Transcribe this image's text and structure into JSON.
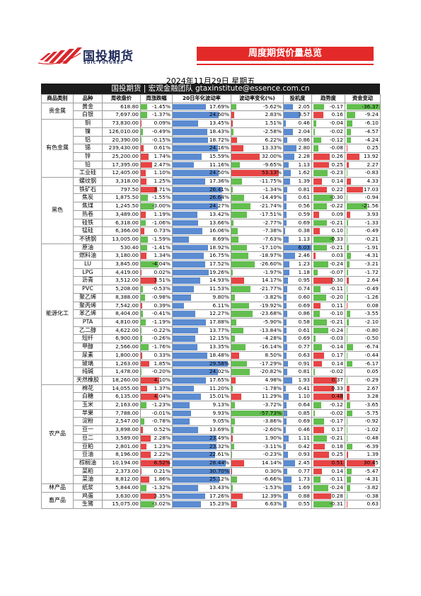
{
  "logo": {
    "name_cn": "国投期货",
    "name_en": "SDIC FUTURES"
  },
  "banner": "周度期货价量总览",
  "date": "2024年11月29日 星期五",
  "team": "国投期货 | 宏观金融团队  gtaxinstitute@essence.com.cn",
  "headers": [
    "商品类别",
    "品种",
    "周收盘价",
    "周涨跌幅",
    "20日年化波动率",
    "波动率变化(%)",
    "投机度",
    "趋势度",
    "资金变动"
  ],
  "groups": [
    {
      "category": "贵金属",
      "rows": [
        [
          "黄金",
          "618.80",
          "-1.45%",
          "17.69%",
          "-5.62%",
          "2.05",
          "-0.17",
          "-36.37"
        ],
        [
          "白银",
          "7,697.00",
          "-1.37%",
          "24.60%",
          "2.83%",
          "3.57",
          "0.16",
          "-9.24"
        ]
      ]
    },
    {
      "category": "有色金属",
      "rows": [
        [
          "铜",
          "73,830.00",
          "0.09%",
          "13.45%",
          "1.51%",
          "0.46",
          "-0.04",
          "-6.10"
        ],
        [
          "镍",
          "126,010.00",
          "-0.49%",
          "18.43%",
          "-2.58%",
          "2.04",
          "-0.02",
          "-4.57"
        ],
        [
          "铝",
          "20,390.00",
          "-0.15%",
          "18.72%",
          "6.22%",
          "0.86",
          "-0.12",
          "-4.24"
        ],
        [
          "锡",
          "239,430.00",
          "0.61%",
          "24.16%",
          "13.33%",
          "2.80",
          "-0.08",
          "0.25"
        ],
        [
          "锌",
          "25,200.00",
          "1.74%",
          "15.59%",
          "32.00%",
          "2.28",
          "0.26",
          "13.92"
        ],
        [
          "铅",
          "17,395.00",
          "2.47%",
          "11.16%",
          "-9.65%",
          "1.13",
          "0.25",
          "2.27"
        ],
        [
          "工业硅",
          "12,405.00",
          "1.10%",
          "24.50%",
          "53.13%",
          "1.62",
          "-0.23",
          "-0.83"
        ]
      ]
    },
    {
      "category": "黑色",
      "rows": [
        [
          "螺纹钢",
          "3,318.00",
          "1.25%",
          "17.36%",
          "-11.75%",
          "1.39",
          "0.14",
          "4.33"
        ],
        [
          "铁矿石",
          "797.50",
          "3.71%",
          "26.41%",
          "-1.34%",
          "0.81",
          "0.22",
          "17.03"
        ],
        [
          "焦炭",
          "1,875.50",
          "-1.55%",
          "26.64%",
          "-14.49%",
          "0.61",
          "-0.30",
          "-0.94"
        ],
        [
          "焦煤",
          "1,245.50",
          "-3.00%",
          "24.27%",
          "-21.74%",
          "0.56",
          "-0.22",
          "-21.56"
        ],
        [
          "热卷",
          "3,489.00",
          "1.19%",
          "13.42%",
          "-17.51%",
          "0.59",
          "0.09",
          "3.93"
        ],
        [
          "硅铁",
          "6,318.00",
          "-1.06%",
          "13.66%",
          "-2.77%",
          "0.69",
          "-0.21",
          "-1.33"
        ],
        [
          "锰硅",
          "6,366.00",
          "0.73%",
          "16.06%",
          "-7.38%",
          "0.38",
          "0.10",
          "-0.49"
        ],
        [
          "不锈钢",
          "13,005.00",
          "-1.59%",
          "8.69%",
          "-7.63%",
          "1.13",
          "-0.33",
          "-0.21"
        ]
      ]
    },
    {
      "category": "能源化工",
      "rows": [
        [
          "原油",
          "530.40",
          "-1.41%",
          "18.92%",
          "-17.10%",
          "6.03",
          "-0.21",
          "-1.91"
        ],
        [
          "燃料油",
          "3,180.00",
          "1.34%",
          "16.75%",
          "-18.97%",
          "2.46",
          "0.03",
          "-4.31"
        ],
        [
          "LU",
          "3,845.00",
          "-4.04%",
          "17.52%",
          "-26.60%",
          "1.23",
          "-0.24",
          "-3.21"
        ],
        [
          "LPG",
          "4,419.00",
          "0.02%",
          "19.26%",
          "-1.97%",
          "1.18",
          "-0.07",
          "-1.72"
        ],
        [
          "沥青",
          "3,512.00",
          "3.51%",
          "14.93%",
          "14.17%",
          "0.95",
          "0.30",
          "2.64"
        ],
        [
          "PVC",
          "5,208.00",
          "-0.53%",
          "11.53%",
          "-21.77%",
          "0.74",
          "-0.11",
          "-0.49"
        ],
        [
          "聚乙烯",
          "8,388.00",
          "-0.98%",
          "9.80%",
          "-3.82%",
          "0.60",
          "-0.20",
          "-1.26"
        ],
        [
          "聚丙烯",
          "7,542.00",
          "0.39%",
          "6.11%",
          "-19.92%",
          "0.69",
          "0.11",
          "0.08"
        ],
        [
          "苯乙烯",
          "8,404.00",
          "-0.41%",
          "12.27%",
          "-23.68%",
          "0.86",
          "-0.10",
          "-3.55"
        ],
        [
          "PTA",
          "4,810.00",
          "-1.19%",
          "17.88%",
          "-5.90%",
          "0.58",
          "-0.21",
          "-2.10"
        ],
        [
          "乙二醇",
          "4,622.00",
          "-0.22%",
          "13.77%",
          "-13.84%",
          "0.61",
          "-0.24",
          "-0.80"
        ],
        [
          "短纤",
          "6,900.00",
          "-0.26%",
          "12.15%",
          "-4.28%",
          "0.69",
          "-0.03",
          "-0.50"
        ],
        [
          "甲醇",
          "2,566.00",
          "-1.76%",
          "13.35%",
          "-16.14%",
          "0.77",
          "-0.14",
          "-6.74"
        ],
        [
          "尿素",
          "1,800.00",
          "0.33%",
          "18.48%",
          "8.50%",
          "0.63",
          "0.17",
          "-0.44"
        ],
        [
          "玻璃",
          "1,263.00",
          "1.85%",
          "29.58%",
          "-17.29%",
          "0.91",
          "0.14",
          "-6.17"
        ],
        [
          "纯碱",
          "1,478.00",
          "-0.20%",
          "24.02%",
          "-20.82%",
          "0.81",
          "-0.02",
          "0.05"
        ],
        [
          "天然橡胶",
          "18,260.00",
          "4.10%",
          "17.65%",
          "4.98%",
          "1.93",
          "0.37",
          "-0.29"
        ]
      ]
    },
    {
      "category": "农产品",
      "rows": [
        [
          "棉花",
          "14,055.00",
          "1.37%",
          "11.20%",
          "-1.78%",
          "0.41",
          "0.33",
          "2.67"
        ],
        [
          "白糖",
          "6,135.00",
          "4.04%",
          "15.01%",
          "11.29%",
          "1.10",
          "0.48",
          "3.28"
        ],
        [
          "玉米",
          "2,163.00",
          "-1.23%",
          "9.13%",
          "-3.72%",
          "0.64",
          "-0.12",
          "-3.65"
        ],
        [
          "苹果",
          "7,788.00",
          "-0.01%",
          "9.93%",
          "-57.73%",
          "0.85",
          "-0.02",
          "-5.75"
        ],
        [
          "淀粉",
          "2,547.00",
          "-0.78%",
          "9.05%",
          "-3.86%",
          "0.69",
          "-0.17",
          "-0.92"
        ],
        [
          "豆一",
          "3,898.00",
          "0.52%",
          "13.69%",
          "-2.60%",
          "0.46",
          "0.17",
          "-1.02"
        ],
        [
          "豆二",
          "3,589.00",
          "2.28%",
          "23.49%",
          "1.90%",
          "1.11",
          "-0.21",
          "-0.48"
        ],
        [
          "豆粕",
          "2,801.00",
          "1.23%",
          "23.32%",
          "-3.11%",
          "0.42",
          "0.18",
          "-6.39"
        ],
        [
          "豆油",
          "8,196.00",
          "2.22%",
          "22.61%",
          "-0.23%",
          "0.93",
          "0.25",
          "1.39"
        ],
        [
          "棕榈油",
          "10,194.00",
          "6.52%",
          "28.44%",
          "14.14%",
          "2.45",
          "0.51",
          "30.45"
        ],
        [
          "菜粕",
          "2,373.00",
          "0.21%",
          "30.70%",
          "0.30%",
          "0.77",
          "0.14",
          "-5.47"
        ],
        [
          "菜油",
          "8,812.00",
          "1.86%",
          "25.12%",
          "-6.66%",
          "1.73",
          "-0.11",
          "-4.31"
        ]
      ]
    },
    {
      "category": "林产品",
      "rows": [
        [
          "纸浆",
          "5,844.00",
          "-1.32%",
          "13.43%",
          "-1.53%",
          "1.69",
          "-0.24",
          "-3.82"
        ]
      ]
    },
    {
      "category": "畜产品",
      "rows": [
        [
          "鸡蛋",
          "3,630.00",
          "3.35%",
          "17.26%",
          "12.39%",
          "0.88",
          "0.28",
          "-0.38"
        ],
        [
          "生猪",
          "15,075.00",
          "-3.02%",
          "15.23%",
          "6.63%",
          "0.55",
          "-0.31",
          "0.63"
        ]
      ]
    }
  ],
  "colors": {
    "brand_red": "#e32a29",
    "brand_navy": "#1f2a5a",
    "positive": "#e64545",
    "negative": "#63be4f",
    "bar_blue": "#5b8bd0"
  }
}
